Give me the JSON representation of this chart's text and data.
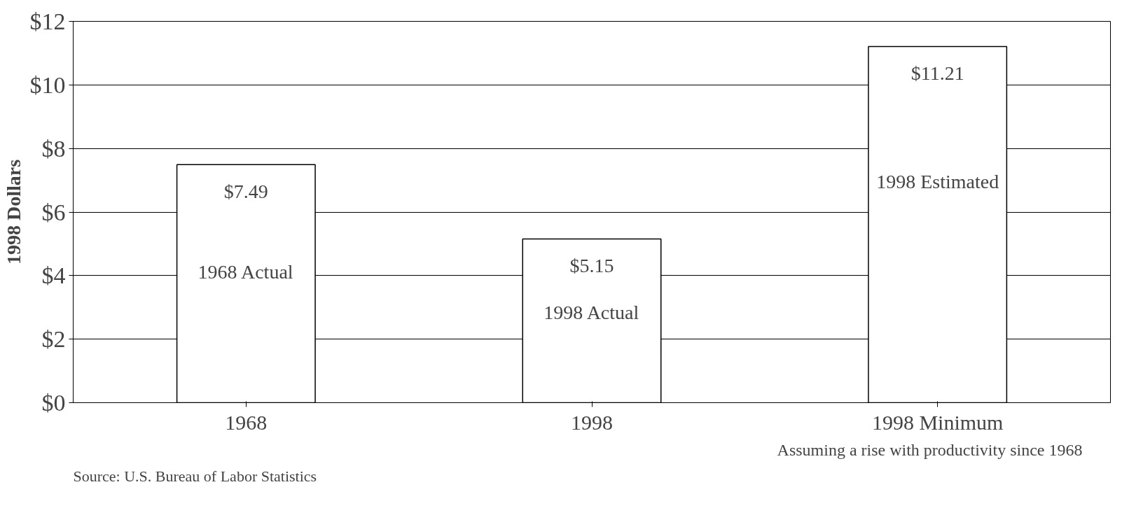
{
  "chart_data": {
    "type": "bar",
    "ylabel": "1998 Dollars",
    "categories": [
      "1968",
      "1998",
      "1998 Minimum"
    ],
    "values": [
      7.49,
      5.15,
      11.21
    ],
    "value_labels": [
      "$7.49",
      "$5.15",
      "$11.21"
    ],
    "color": "#ffffff",
    "ylim": [
      0,
      12
    ],
    "yticks": [
      {
        "value": 0,
        "label": "$0"
      },
      {
        "value": 2,
        "label": "$2"
      },
      {
        "value": 4,
        "label": "$4"
      },
      {
        "value": 6,
        "label": "$6"
      },
      {
        "value": 8,
        "label": "$8"
      },
      {
        "value": 10,
        "label": "$10"
      },
      {
        "value": 12,
        "label": "$12"
      }
    ],
    "grid": "y",
    "annotations": [
      "1968 Actual",
      "1998 Actual",
      "1998 Estimated",
      "Assuming a rise with productivity since 1968",
      "Source: U.S. Bureau of Labor Statistics"
    ]
  }
}
